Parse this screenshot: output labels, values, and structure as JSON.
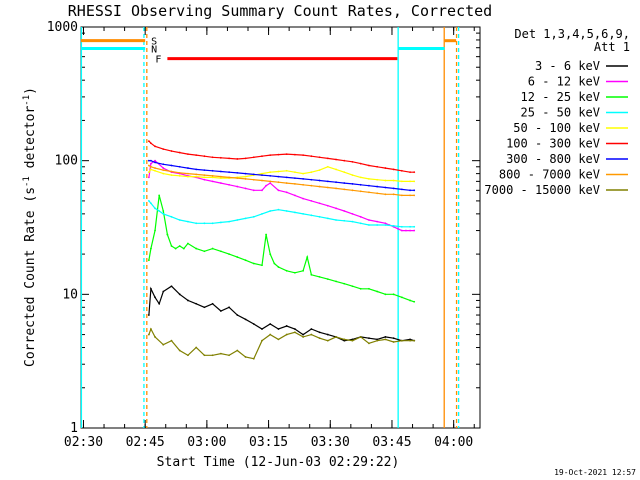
{
  "chart_data": {
    "type": "line",
    "title": "RHESSI Observing Summary Count Rates, Corrected",
    "xlabel": "Start Time (12-Jun-03 02:29:22)",
    "ylabel": "Corrected Count Rate (s",
    "ylabel_sup": "-1",
    "ylabel_tail": " detector",
    "ylabel_close": ")",
    "x_units": "minutes since 02:29:22",
    "xlim": [
      0,
      97
    ],
    "ylim": [
      1,
      1000
    ],
    "yscale": "log",
    "x_ticks": [
      {
        "label": "02:30",
        "value": 0.6
      },
      {
        "label": "02:45",
        "value": 15.6
      },
      {
        "label": "03:00",
        "value": 30.6
      },
      {
        "label": "03:15",
        "value": 45.6
      },
      {
        "label": "03:30",
        "value": 60.6
      },
      {
        "label": "03:45",
        "value": 75.6
      },
      {
        "label": "04:00",
        "value": 90.6
      }
    ],
    "y_ticks": [
      {
        "label": "1",
        "value": 1
      },
      {
        "label": "10",
        "value": 10
      },
      {
        "label": "100",
        "value": 100
      },
      {
        "label": "1000",
        "value": 1000
      }
    ],
    "legend_header": [
      "Det 1,3,4,5,6,9,",
      "Att 1"
    ],
    "series": [
      {
        "name": "3 - 6 keV",
        "color": "#000000",
        "x": [
          16.5,
          17,
          18,
          19,
          20,
          22,
          24,
          26,
          28,
          30,
          32,
          34,
          36,
          38,
          40,
          42,
          44,
          46,
          48,
          50,
          52,
          54,
          56,
          58,
          60,
          62,
          64,
          66,
          68,
          70,
          72,
          74,
          76,
          78,
          80,
          81
        ],
        "y": [
          7,
          11,
          9.5,
          8.5,
          10.5,
          11.5,
          10,
          9,
          8.5,
          8,
          8.5,
          7.5,
          8,
          7,
          6.5,
          6,
          5.5,
          6,
          5.5,
          5.8,
          5.5,
          5,
          5.5,
          5.2,
          5,
          4.8,
          4.5,
          4.6,
          4.8,
          4.7,
          4.6,
          4.8,
          4.7,
          4.5,
          4.6,
          4.5
        ]
      },
      {
        "name": "6 - 12 keV",
        "color": "#ff00ff",
        "x": [
          16.5,
          17,
          18,
          20,
          22,
          24,
          26,
          28,
          30,
          32,
          34,
          36,
          38,
          40,
          42,
          44,
          45,
          46,
          48,
          50,
          52,
          54,
          56,
          58,
          60,
          62,
          64,
          66,
          68,
          70,
          72,
          74,
          75,
          76,
          77,
          78,
          79,
          80,
          81
        ],
        "y": [
          75,
          95,
          100,
          88,
          82,
          80,
          77,
          75,
          72,
          70,
          68,
          66,
          64,
          62,
          60,
          60,
          65,
          68,
          60,
          58,
          55,
          52,
          50,
          48,
          46,
          44,
          42,
          40,
          38,
          36,
          35,
          34,
          33,
          32,
          31,
          30,
          30,
          30,
          30
        ]
      },
      {
        "name": "12 - 25 keV",
        "color": "#00ff00",
        "x": [
          16.5,
          17,
          18,
          19,
          20,
          21,
          22,
          23,
          24,
          25,
          26,
          28,
          30,
          32,
          34,
          36,
          38,
          40,
          42,
          44,
          45,
          46,
          47,
          48,
          50,
          52,
          54,
          55,
          56,
          58,
          60,
          62,
          64,
          66,
          68,
          70,
          72,
          74,
          76,
          78,
          80,
          81
        ],
        "y": [
          18,
          22,
          30,
          55,
          42,
          28,
          23,
          22,
          23,
          22,
          24,
          22,
          21,
          22,
          21,
          20,
          19,
          18,
          17,
          16.5,
          28,
          20,
          17,
          16,
          15,
          14.5,
          15,
          19,
          14,
          13.5,
          13,
          12.5,
          12,
          11.5,
          11,
          11,
          10.5,
          10,
          10,
          9.5,
          9,
          8.8
        ]
      },
      {
        "name": "25 - 50 keV",
        "color": "#00ffff",
        "x": [
          16.5,
          17,
          18,
          19,
          20,
          22,
          24,
          26,
          28,
          30,
          32,
          34,
          36,
          38,
          40,
          42,
          44,
          46,
          48,
          50,
          52,
          54,
          56,
          58,
          60,
          62,
          64,
          66,
          68,
          70,
          72,
          74,
          76,
          78,
          80,
          81
        ],
        "y": [
          50,
          48,
          44,
          42,
          40,
          38,
          36,
          35,
          34,
          34,
          34,
          34.5,
          35,
          36,
          37,
          38,
          40,
          42,
          43,
          42,
          41,
          40,
          39,
          38,
          37,
          36,
          35.5,
          35,
          34,
          33,
          33,
          33,
          32.5,
          32,
          32,
          32
        ]
      },
      {
        "name": "50 - 100 keV",
        "color": "#ffff00",
        "x": [
          16.5,
          17,
          18,
          20,
          22,
          24,
          26,
          28,
          30,
          32,
          34,
          36,
          38,
          40,
          42,
          44,
          46,
          48,
          50,
          52,
          54,
          56,
          58,
          60,
          62,
          64,
          66,
          68,
          70,
          72,
          74,
          76,
          78,
          80,
          81
        ],
        "y": [
          82,
          86,
          84,
          80,
          78,
          77,
          76,
          76,
          75,
          75,
          74,
          74,
          75,
          76,
          78,
          80,
          82,
          83,
          84,
          82,
          80,
          82,
          85,
          90,
          86,
          82,
          78,
          75,
          73,
          72,
          71,
          71,
          70,
          70,
          70
        ]
      },
      {
        "name": "100 - 300 keV",
        "color": "#ff0000",
        "x": [
          16.5,
          17,
          18,
          20,
          22,
          24,
          26,
          28,
          30,
          32,
          34,
          36,
          38,
          40,
          42,
          44,
          46,
          48,
          50,
          52,
          54,
          56,
          58,
          60,
          62,
          64,
          66,
          68,
          70,
          72,
          74,
          76,
          78,
          80,
          81
        ],
        "y": [
          140,
          135,
          128,
          122,
          118,
          115,
          112,
          110,
          108,
          106,
          105,
          104,
          103,
          104,
          106,
          108,
          110,
          111,
          112,
          111,
          110,
          108,
          106,
          104,
          102,
          100,
          98,
          95,
          92,
          90,
          88,
          86,
          84,
          82,
          82
        ]
      },
      {
        "name": "300 - 800 keV",
        "color": "#0000ff",
        "x": [
          16.5,
          17,
          18,
          20,
          22,
          24,
          26,
          28,
          30,
          32,
          34,
          36,
          38,
          40,
          42,
          44,
          46,
          48,
          50,
          52,
          54,
          56,
          58,
          60,
          62,
          64,
          66,
          68,
          70,
          72,
          74,
          76,
          78,
          80,
          81
        ],
        "y": [
          100,
          100,
          97,
          94,
          92,
          90,
          88,
          86,
          85,
          84,
          83,
          82,
          81,
          80,
          79,
          78,
          77,
          76,
          75,
          74,
          73,
          72,
          71,
          70,
          69,
          68,
          67,
          66,
          65,
          64,
          63,
          62,
          61,
          60,
          60
        ]
      },
      {
        "name": "800 - 7000 keV",
        "color": "#ff9900",
        "x": [
          16.5,
          17,
          18,
          20,
          22,
          24,
          26,
          28,
          30,
          32,
          34,
          36,
          38,
          40,
          42,
          44,
          46,
          48,
          50,
          52,
          54,
          56,
          58,
          60,
          62,
          64,
          66,
          68,
          70,
          72,
          74,
          76,
          78,
          80,
          81
        ],
        "y": [
          92,
          90,
          88,
          85,
          83,
          81,
          80,
          79,
          78,
          77,
          76,
          75,
          74,
          73,
          72,
          71,
          70,
          69,
          68,
          67,
          66,
          65,
          64,
          63,
          62,
          61,
          60,
          59,
          58,
          57,
          56,
          56,
          55,
          55,
          55
        ]
      },
      {
        "name": "7000 - 15000 keV",
        "color": "#808000",
        "x": [
          16.5,
          17,
          18,
          20,
          22,
          24,
          26,
          28,
          30,
          32,
          34,
          36,
          38,
          40,
          42,
          44,
          46,
          48,
          50,
          52,
          54,
          56,
          58,
          60,
          62,
          64,
          66,
          68,
          70,
          72,
          74,
          76,
          78,
          80,
          81
        ],
        "y": [
          5,
          5.5,
          4.8,
          4.2,
          4.5,
          3.8,
          3.5,
          4,
          3.5,
          3.5,
          3.6,
          3.5,
          3.8,
          3.4,
          3.3,
          4.5,
          5,
          4.6,
          5,
          5.2,
          4.8,
          5,
          4.7,
          4.5,
          4.8,
          4.6,
          4.5,
          4.8,
          4.3,
          4.5,
          4.6,
          4.4,
          4.5,
          4.5,
          4.5
        ]
      }
    ],
    "state_bars": [
      {
        "label": "S",
        "color": "#ff8c00",
        "level": 790,
        "x_spans": [
          [
            0,
            15.6
          ],
          [
            88.4,
            91.2
          ]
        ]
      },
      {
        "label": "N",
        "color": "#00ffff",
        "level": 690,
        "x_spans": [
          [
            0,
            15.6
          ],
          [
            77.2,
            88.4
          ]
        ]
      },
      {
        "label": "F",
        "color": "#ff0000",
        "level": 580,
        "x_spans": [
          [
            21,
            76.9
          ]
        ]
      }
    ],
    "vertical_lines": [
      {
        "x": 0.1,
        "color": "#00ffff",
        "style": "solid"
      },
      {
        "x": 15.3,
        "color": "#00ffff",
        "style": "dashed"
      },
      {
        "x": 16.0,
        "color": "#ff8c00",
        "style": "dashed"
      },
      {
        "x": 77.1,
        "color": "#00ffff",
        "style": "solid"
      },
      {
        "x": 88.3,
        "color": "#ff8c00",
        "style": "solid"
      },
      {
        "x": 91.3,
        "color": "#ff8c00",
        "style": "dashed"
      },
      {
        "x": 91.8,
        "color": "#00ffff",
        "style": "dashed"
      }
    ],
    "footer_stamp": "19-Oct-2021 12:57"
  }
}
